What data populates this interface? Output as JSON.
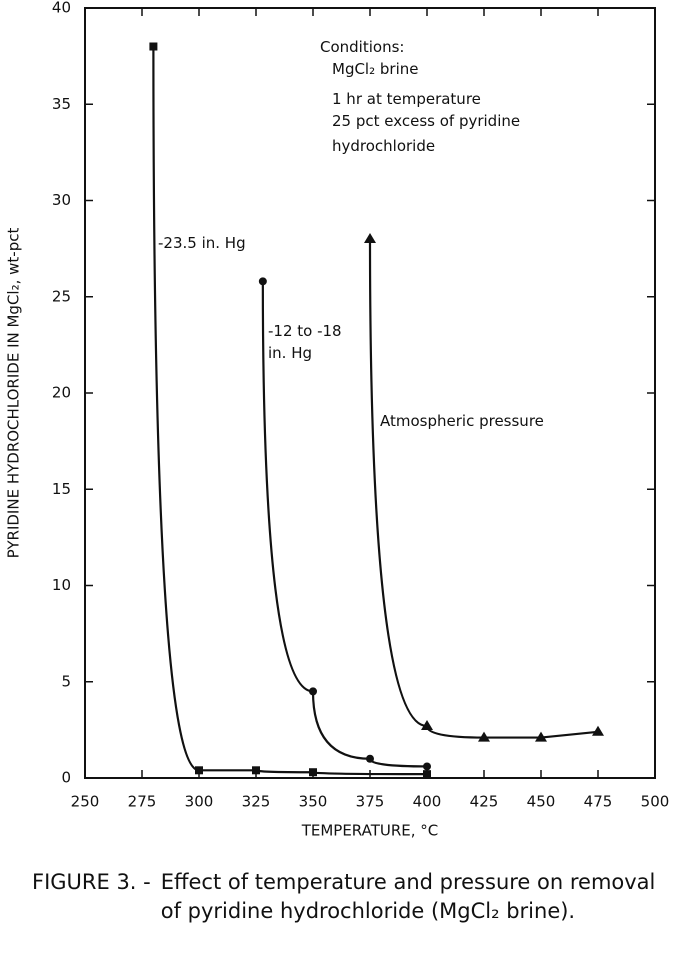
{
  "chart_data": {
    "type": "line",
    "xlabel": "TEMPERATURE, °C",
    "ylabel": "PYRIDINE HYDROCHLORIDE IN MgCl₂, wt-pct",
    "xlim": [
      250,
      500
    ],
    "xticks": [
      250,
      275,
      300,
      325,
      350,
      375,
      400,
      425,
      450,
      475,
      500
    ],
    "ylim": [
      0,
      40
    ],
    "yticks": [
      0,
      5,
      10,
      15,
      20,
      25,
      30,
      35,
      40
    ],
    "annotations": [
      "Conditions:",
      "MgCl₂ brine",
      "1 hr at temperature",
      "25 pct excess of pyridine",
      "hydrochloride"
    ],
    "series": [
      {
        "name": "-23.5 in. Hg",
        "color": "#111111",
        "marker": "square",
        "x": [
          280,
          300,
          325,
          350,
          400
        ],
        "values": [
          38,
          0.4,
          0.4,
          0.3,
          0.2
        ]
      },
      {
        "name": "-12 to -18 in. Hg",
        "color": "#111111",
        "marker": "circle",
        "x": [
          328,
          350,
          375,
          400
        ],
        "values": [
          25.8,
          4.5,
          1.0,
          0.6
        ]
      },
      {
        "name": "Atmospheric pressure",
        "color": "#111111",
        "marker": "triangle",
        "x": [
          375,
          400,
          425,
          450,
          475
        ],
        "values": [
          28,
          2.7,
          2.1,
          2.1,
          2.4
        ]
      }
    ],
    "caption_label": "FIGURE 3. -",
    "caption": "Effect of temperature and pressure on removal of pyridine hydrochloride (MgCl₂ brine)."
  }
}
